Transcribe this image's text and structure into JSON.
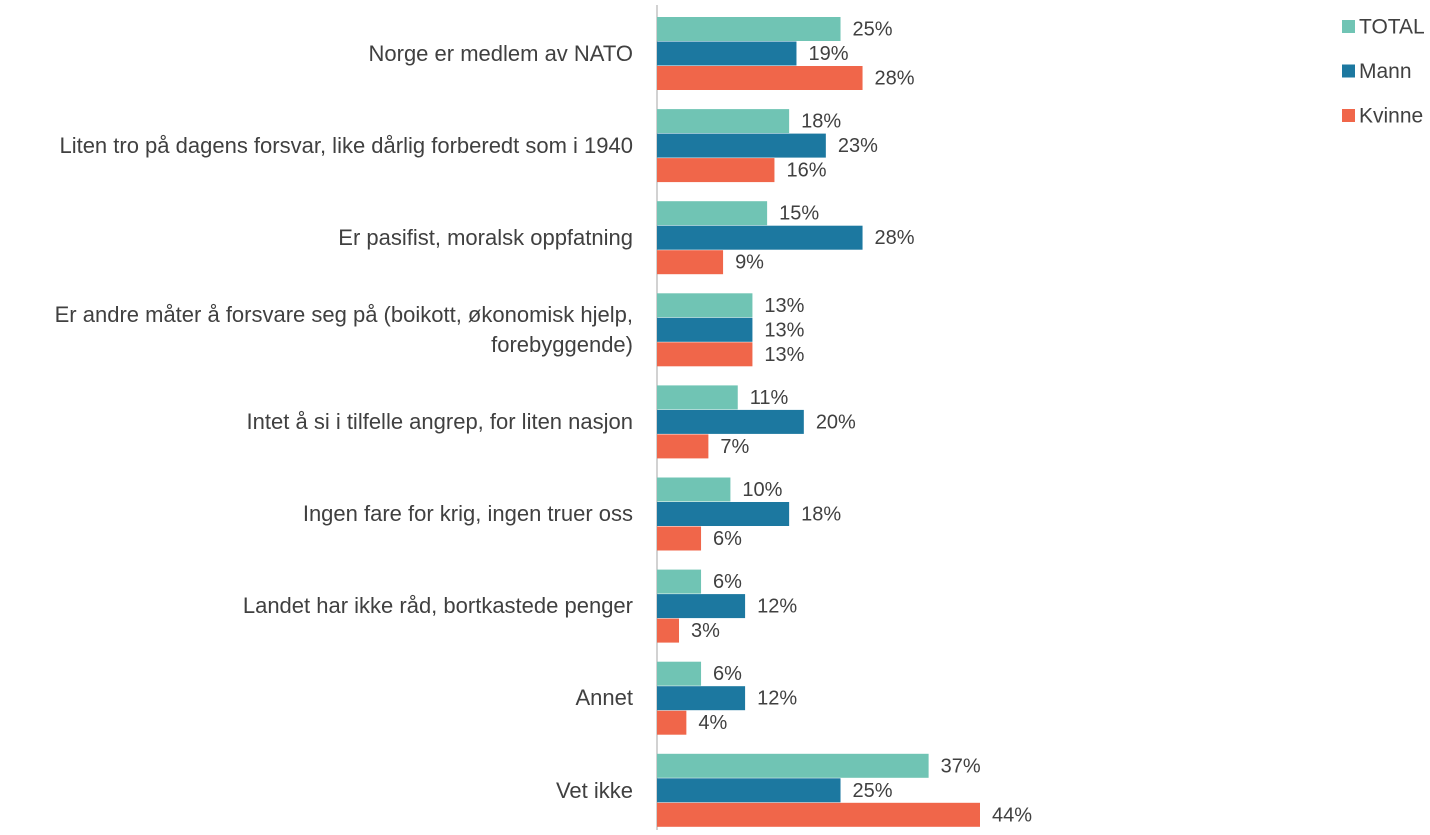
{
  "chart_data": {
    "type": "bar",
    "orientation": "horizontal",
    "categories": [
      "Norge er medlem av NATO",
      "Liten tro på dagens forsvar, like dårlig forberedt som i 1940",
      "Er pasifist, moralsk oppfatning",
      "Er andre måter å forsvare seg på (boikott, økonomisk hjelp, forebyggende)",
      "Intet å si i tilfelle angrep, for liten nasjon",
      "Ingen fare for krig, ingen truer oss",
      "Landet har ikke råd, bortkastede penger",
      "Annet",
      "Vet ikke"
    ],
    "series": [
      {
        "name": "TOTAL",
        "color": "#70c4b4",
        "values": [
          25,
          18,
          15,
          13,
          11,
          10,
          6,
          6,
          37
        ],
        "value_labels": [
          "25%",
          "18%",
          "15%",
          "13%",
          "11%",
          "10%",
          "6%",
          "6%",
          "37%"
        ]
      },
      {
        "name": "Mann",
        "color": "#1c78a0",
        "values": [
          19,
          23,
          28,
          13,
          20,
          18,
          12,
          12,
          25
        ],
        "value_labels": [
          "19%",
          "23%",
          "28%",
          "13%",
          "20%",
          "18%",
          "12%",
          "12%",
          "25%"
        ]
      },
      {
        "name": "Kvinne",
        "color": "#f0664a",
        "values": [
          28,
          16,
          9,
          13,
          7,
          6,
          3,
          4,
          44
        ],
        "value_labels": [
          "28%",
          "16%",
          "9%",
          "13%",
          "7%",
          "6%",
          "3%",
          "4%",
          "44%"
        ]
      }
    ],
    "xlim": [
      0,
      44
    ],
    "legend": "top-right"
  }
}
